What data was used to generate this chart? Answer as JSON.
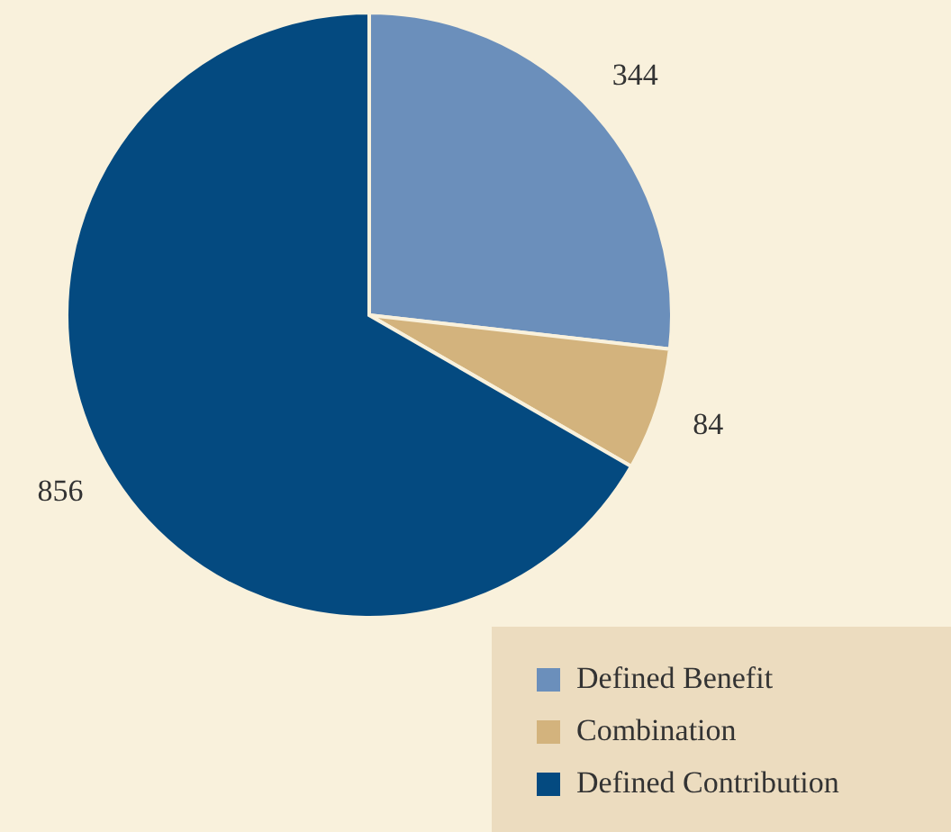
{
  "chart_data": {
    "type": "pie",
    "categories": [
      "Defined Benefit",
      "Combination",
      "Defined Contribution"
    ],
    "values": [
      344,
      84,
      856
    ],
    "colors": [
      "#6b8fbb",
      "#d3b37d",
      "#044a80"
    ],
    "data_labels": true,
    "legend": "bottom right"
  }
}
